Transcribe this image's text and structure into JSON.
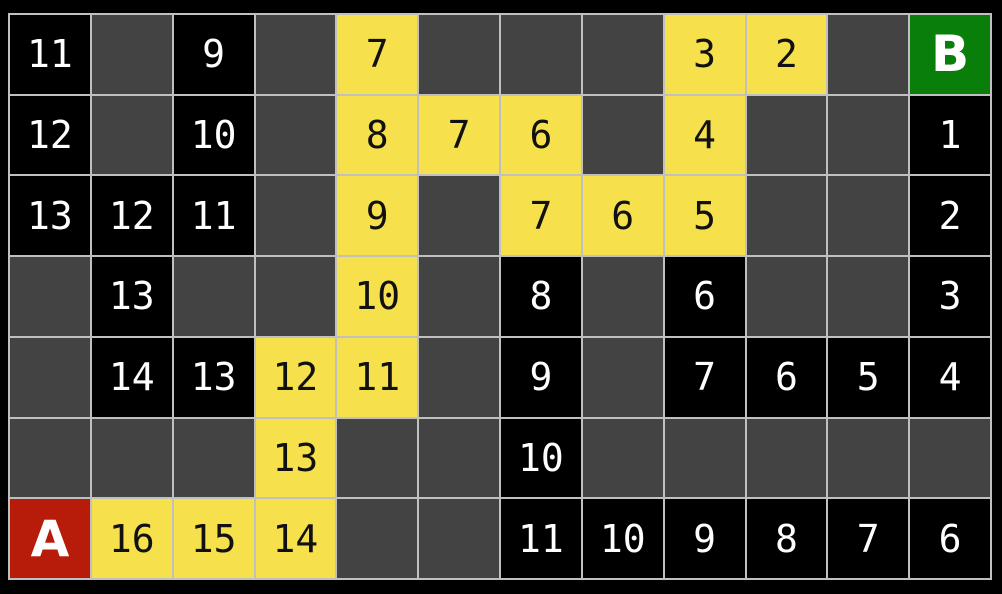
{
  "board": {
    "rows": 7,
    "columns": 12,
    "start_label": "A",
    "goal_label": "B",
    "cell_types_legend": {
      "visited": "black cell with white distance number",
      "unexplored": "dark gray empty cell",
      "path": "yellow shortest-path cell with black distance number",
      "start": "red start cell",
      "goal": "green goal cell"
    },
    "cells": [
      [
        {
          "value": "11",
          "type": "visited"
        },
        {
          "value": "",
          "type": "unexplored"
        },
        {
          "value": "9",
          "type": "visited"
        },
        {
          "value": "",
          "type": "unexplored"
        },
        {
          "value": "7",
          "type": "path"
        },
        {
          "value": "",
          "type": "unexplored"
        },
        {
          "value": "",
          "type": "unexplored"
        },
        {
          "value": "",
          "type": "unexplored"
        },
        {
          "value": "3",
          "type": "path"
        },
        {
          "value": "2",
          "type": "path"
        },
        {
          "value": "",
          "type": "unexplored"
        },
        {
          "value": "B",
          "type": "goal"
        }
      ],
      [
        {
          "value": "12",
          "type": "visited"
        },
        {
          "value": "",
          "type": "unexplored"
        },
        {
          "value": "10",
          "type": "visited"
        },
        {
          "value": "",
          "type": "unexplored"
        },
        {
          "value": "8",
          "type": "path"
        },
        {
          "value": "7",
          "type": "path"
        },
        {
          "value": "6",
          "type": "path"
        },
        {
          "value": "",
          "type": "unexplored"
        },
        {
          "value": "4",
          "type": "path"
        },
        {
          "value": "",
          "type": "unexplored"
        },
        {
          "value": "",
          "type": "unexplored"
        },
        {
          "value": "1",
          "type": "visited"
        }
      ],
      [
        {
          "value": "13",
          "type": "visited"
        },
        {
          "value": "12",
          "type": "visited"
        },
        {
          "value": "11",
          "type": "visited"
        },
        {
          "value": "",
          "type": "unexplored"
        },
        {
          "value": "9",
          "type": "path"
        },
        {
          "value": "",
          "type": "unexplored"
        },
        {
          "value": "7",
          "type": "path"
        },
        {
          "value": "6",
          "type": "path"
        },
        {
          "value": "5",
          "type": "path"
        },
        {
          "value": "",
          "type": "unexplored"
        },
        {
          "value": "",
          "type": "unexplored"
        },
        {
          "value": "2",
          "type": "visited"
        }
      ],
      [
        {
          "value": "",
          "type": "unexplored"
        },
        {
          "value": "13",
          "type": "visited"
        },
        {
          "value": "",
          "type": "unexplored"
        },
        {
          "value": "",
          "type": "unexplored"
        },
        {
          "value": "10",
          "type": "path"
        },
        {
          "value": "",
          "type": "unexplored"
        },
        {
          "value": "8",
          "type": "visited"
        },
        {
          "value": "",
          "type": "unexplored"
        },
        {
          "value": "6",
          "type": "visited"
        },
        {
          "value": "",
          "type": "unexplored"
        },
        {
          "value": "",
          "type": "unexplored"
        },
        {
          "value": "3",
          "type": "visited"
        }
      ],
      [
        {
          "value": "",
          "type": "unexplored"
        },
        {
          "value": "14",
          "type": "visited"
        },
        {
          "value": "13",
          "type": "visited"
        },
        {
          "value": "12",
          "type": "path"
        },
        {
          "value": "11",
          "type": "path"
        },
        {
          "value": "",
          "type": "unexplored"
        },
        {
          "value": "9",
          "type": "visited"
        },
        {
          "value": "",
          "type": "unexplored"
        },
        {
          "value": "7",
          "type": "visited"
        },
        {
          "value": "6",
          "type": "visited"
        },
        {
          "value": "5",
          "type": "visited"
        },
        {
          "value": "4",
          "type": "visited"
        }
      ],
      [
        {
          "value": "",
          "type": "unexplored"
        },
        {
          "value": "",
          "type": "unexplored"
        },
        {
          "value": "",
          "type": "unexplored"
        },
        {
          "value": "13",
          "type": "path"
        },
        {
          "value": "",
          "type": "unexplored"
        },
        {
          "value": "",
          "type": "unexplored"
        },
        {
          "value": "10",
          "type": "visited"
        },
        {
          "value": "",
          "type": "unexplored"
        },
        {
          "value": "",
          "type": "unexplored"
        },
        {
          "value": "",
          "type": "unexplored"
        },
        {
          "value": "",
          "type": "unexplored"
        },
        {
          "value": "",
          "type": "unexplored"
        }
      ],
      [
        {
          "value": "A",
          "type": "start"
        },
        {
          "value": "16",
          "type": "path"
        },
        {
          "value": "15",
          "type": "path"
        },
        {
          "value": "14",
          "type": "path"
        },
        {
          "value": "",
          "type": "unexplored"
        },
        {
          "value": "",
          "type": "unexplored"
        },
        {
          "value": "11",
          "type": "visited"
        },
        {
          "value": "10",
          "type": "visited"
        },
        {
          "value": "9",
          "type": "visited"
        },
        {
          "value": "8",
          "type": "visited"
        },
        {
          "value": "7",
          "type": "visited"
        },
        {
          "value": "6",
          "type": "visited"
        }
      ]
    ]
  },
  "colors": {
    "background": "#000000",
    "visited_cell": "#000000",
    "unexplored_cell": "#434343",
    "path_cell": "#f6e04b",
    "start_cell": "#b71c0b",
    "goal_cell": "#0a7e0a",
    "grid_line": "#c0c0c0",
    "number_on_dark": "#ffffff",
    "number_on_path": "#111111"
  }
}
